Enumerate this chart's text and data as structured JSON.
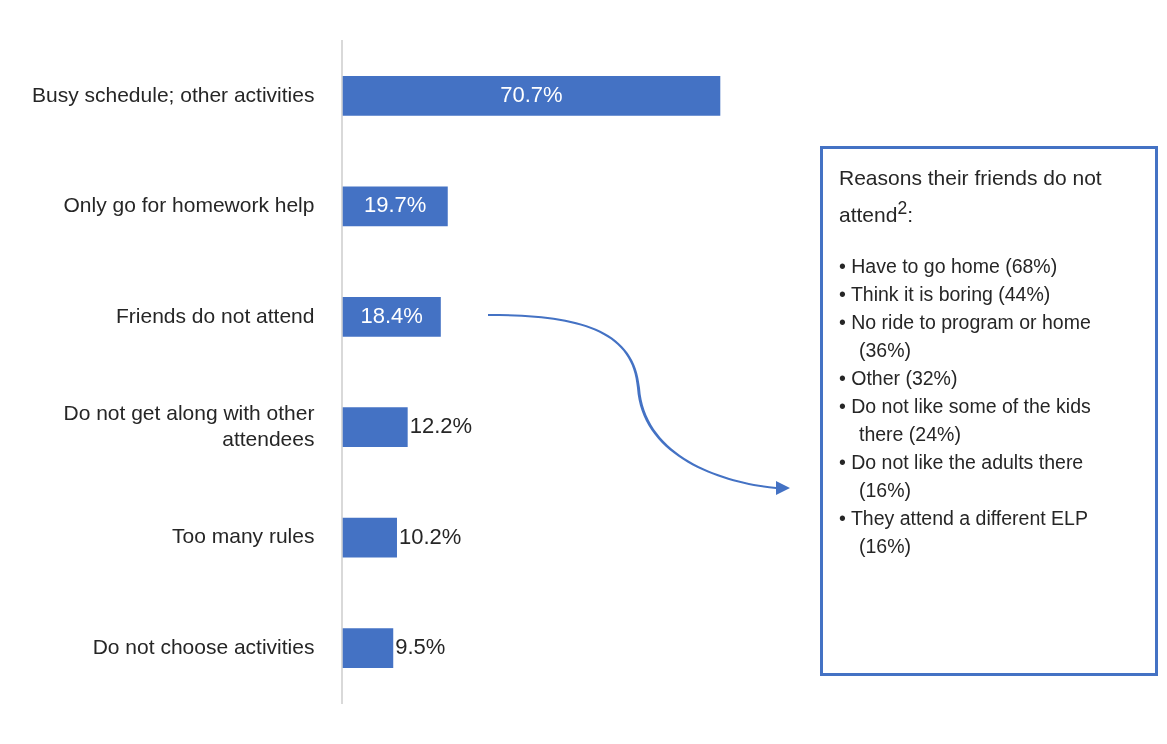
{
  "chart_data": {
    "type": "bar",
    "orientation": "horizontal",
    "categories": [
      "Busy schedule; other activities",
      "Only go for homework help",
      "Friends do not attend",
      "Do not get along with other attendees",
      "Too many rules",
      "Do not choose activities"
    ],
    "values": [
      70.7,
      19.7,
      18.4,
      12.2,
      10.2,
      9.5
    ],
    "value_labels": [
      "70.7%",
      "19.7%",
      "18.4%",
      "12.2%",
      "10.2%",
      "9.5%"
    ],
    "color": "#4472c4",
    "tick_labels": "y",
    "legend": false,
    "annotations": [
      "Reasons their friends do not attend$^{2}$:",
      "• Have to go home (68%)",
      "• Think it is boring (44%)",
      "• No ride to program or home (36%)",
      "• Other (32%)",
      "• Do not like some of the kids there (24%)",
      "• Do not like the adults there (16%)",
      "• They attend a different ELP (16%)"
    ]
  }
}
